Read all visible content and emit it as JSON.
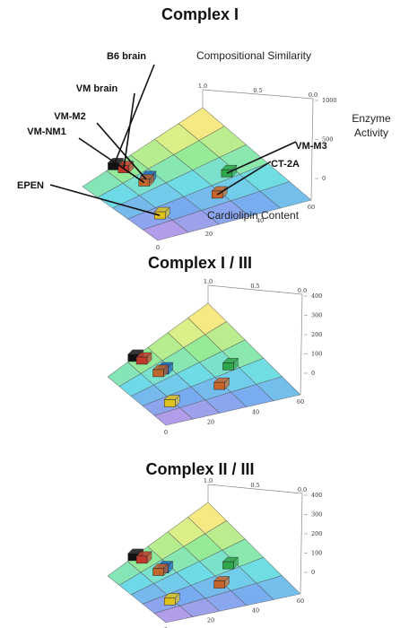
{
  "chart_data": [
    {
      "type": "surface3d",
      "title": "Complex I",
      "axis_labels": {
        "similarity": "Compositional Similarity",
        "cardiolipin": "Cardiolipin Content",
        "activity": [
          "Enzyme",
          "Activity"
        ]
      },
      "similarity_ticks": [
        "1.0",
        "0.5",
        "0.0"
      ],
      "cardiolipin_ticks": [
        "0",
        "20",
        "40",
        "60"
      ],
      "activity_ticks": [
        "1000",
        "500",
        "0"
      ],
      "activity_range": [
        0,
        1200
      ],
      "samples": [
        {
          "name": "B6 brain",
          "similarity": 1.0,
          "cardiolipin": 18,
          "activity": 960
        },
        {
          "name": "VM brain",
          "similarity": 0.92,
          "cardiolipin": 20,
          "activity": 900
        },
        {
          "name": "VM-M2",
          "similarity": 0.72,
          "cardiolipin": 23,
          "activity": 610
        },
        {
          "name": "VM-NM1",
          "similarity": 0.7,
          "cardiolipin": 21,
          "activity": 560
        },
        {
          "name": "VM-M3",
          "similarity": 0.45,
          "cardiolipin": 52,
          "activity": 660
        },
        {
          "name": "CT-2A",
          "similarity": 0.3,
          "cardiolipin": 40,
          "activity": 380
        },
        {
          "name": "EPEN",
          "similarity": 0.3,
          "cardiolipin": 12,
          "activity": 280
        }
      ],
      "show_sample_labels": true
    },
    {
      "type": "surface3d",
      "title": "Complex I / III",
      "similarity_ticks": [
        "1.0",
        "0.5",
        "0.0"
      ],
      "cardiolipin_ticks": [
        "0",
        "20",
        "40",
        "60"
      ],
      "activity_ticks": [
        "400",
        "300",
        "200",
        "100",
        "0"
      ],
      "activity_range": [
        0,
        420
      ],
      "samples": [
        {
          "name": "B6 brain",
          "similarity": 1.0,
          "cardiolipin": 18,
          "activity": 350
        },
        {
          "name": "VM brain",
          "similarity": 0.92,
          "cardiolipin": 20,
          "activity": 320
        },
        {
          "name": "VM-M2",
          "similarity": 0.7,
          "cardiolipin": 24,
          "activity": 220
        },
        {
          "name": "VM-NM1",
          "similarity": 0.7,
          "cardiolipin": 21,
          "activity": 210
        },
        {
          "name": "VM-M3",
          "similarity": 0.45,
          "cardiolipin": 52,
          "activity": 240
        },
        {
          "name": "CT-2A",
          "similarity": 0.3,
          "cardiolipin": 40,
          "activity": 120
        },
        {
          "name": "EPEN",
          "similarity": 0.3,
          "cardiolipin": 12,
          "activity": 100
        }
      ],
      "show_sample_labels": false
    },
    {
      "type": "surface3d",
      "title": "Complex II / III",
      "similarity_ticks": [
        "1.0",
        "0.5",
        "0.0"
      ],
      "cardiolipin_ticks": [
        "0",
        "20",
        "40",
        "60"
      ],
      "activity_ticks": [
        "400",
        "300",
        "200",
        "100",
        "0"
      ],
      "activity_range": [
        0,
        420
      ],
      "samples": [
        {
          "name": "B6 brain",
          "similarity": 1.0,
          "cardiolipin": 18,
          "activity": 360
        },
        {
          "name": "VM brain",
          "similarity": 0.92,
          "cardiolipin": 20,
          "activity": 330
        },
        {
          "name": "VM-M2",
          "similarity": 0.7,
          "cardiolipin": 24,
          "activity": 240
        },
        {
          "name": "VM-NM1",
          "similarity": 0.7,
          "cardiolipin": 21,
          "activity": 210
        },
        {
          "name": "VM-M3",
          "similarity": 0.45,
          "cardiolipin": 52,
          "activity": 250
        },
        {
          "name": "CT-2A",
          "similarity": 0.3,
          "cardiolipin": 40,
          "activity": 130
        },
        {
          "name": "EPEN",
          "similarity": 0.3,
          "cardiolipin": 12,
          "activity": 110
        }
      ],
      "show_sample_labels": false
    }
  ],
  "sample_colors": {
    "B6 brain": "#111111",
    "VM brain": "#c0392b",
    "VM-M2": "#1f5fbf",
    "VM-NM1": "#c0652b",
    "VM-M3": "#2ea64a",
    "CT-2A": "#c8642a",
    "EPEN": "#e0c21e"
  }
}
